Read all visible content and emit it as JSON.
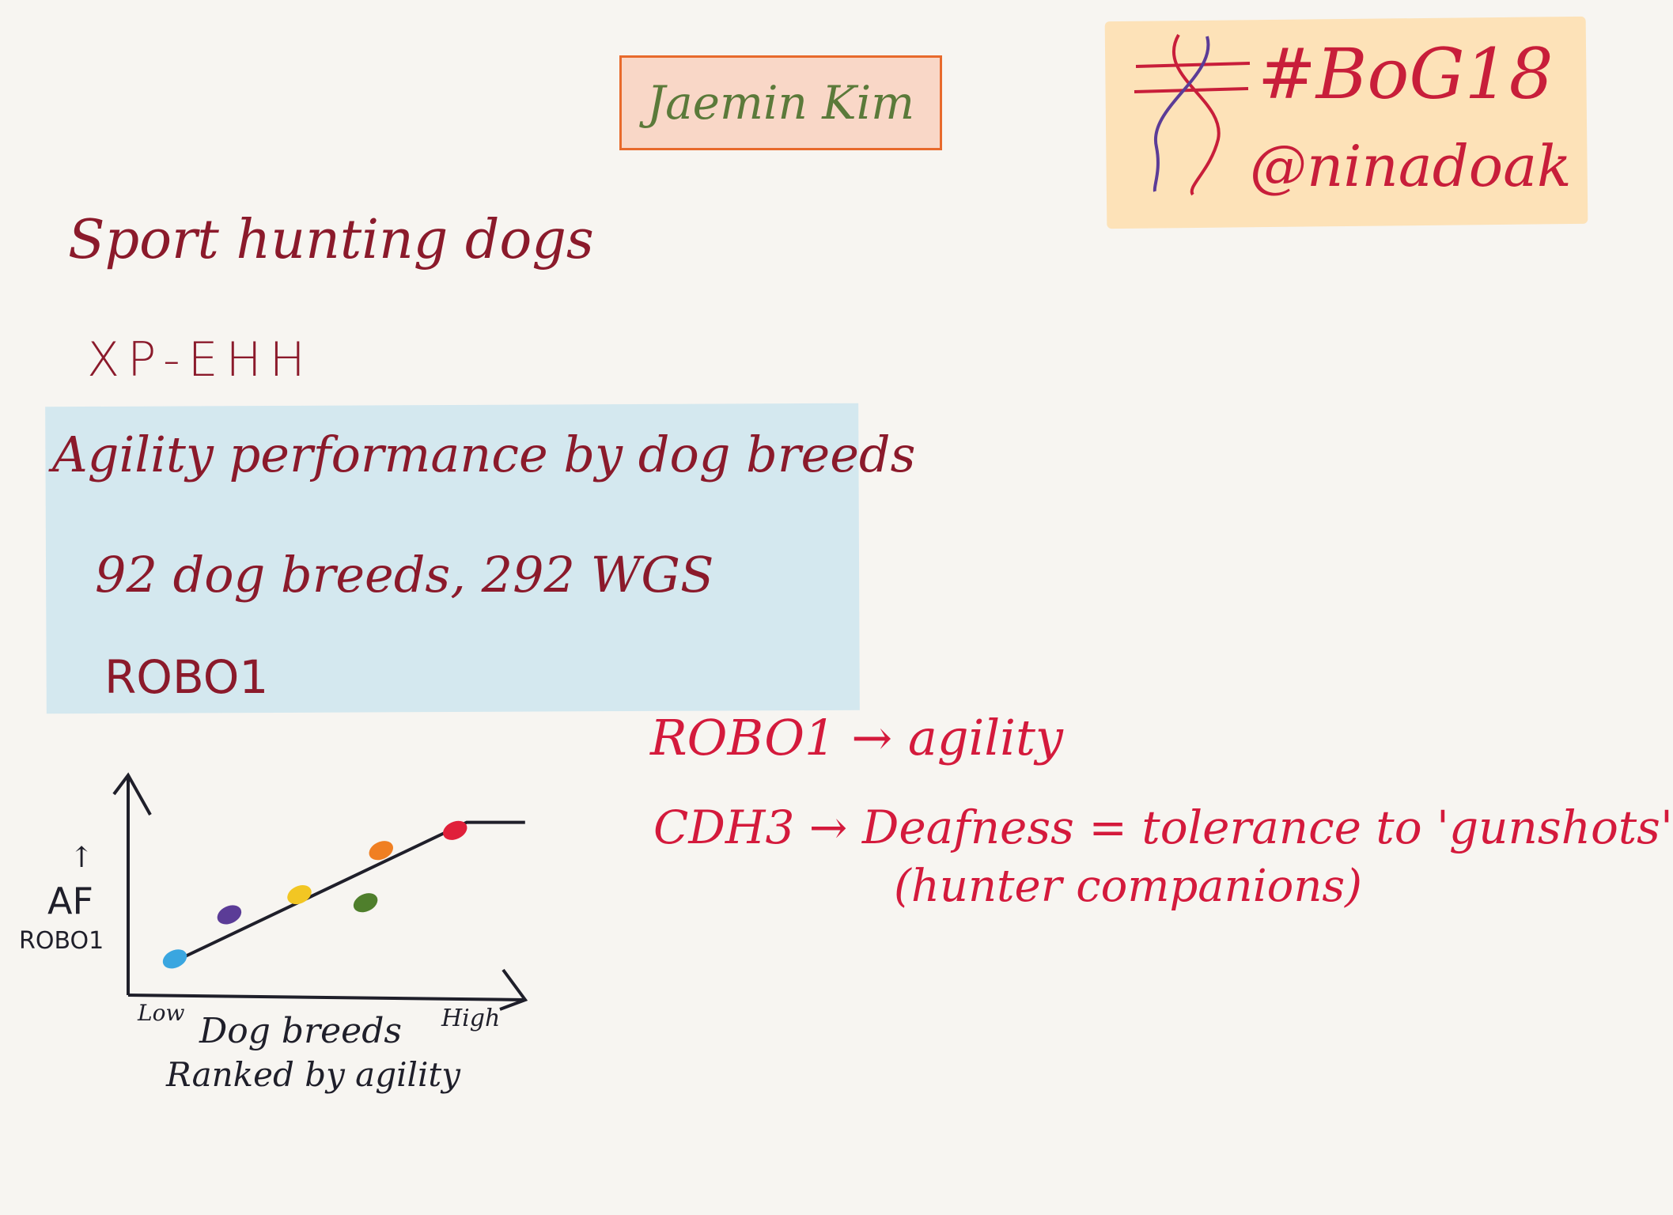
{
  "title": "Jaemin Kim",
  "hashtag": "#BoG18",
  "handle": "@ninadoak",
  "notes": {
    "sport": "Sport hunting dogs",
    "xpehh": "XP-EHH",
    "agility_title": "Agility performance by dog breeds",
    "breeds_wgs": "92 dog breeds, 292 WGS",
    "robo1": "ROBO1",
    "robo_agility": "ROBO1 → agility",
    "cdh3": "CDH3 → Deafness = tolerance to 'gunshots'",
    "hunter": "(hunter companions)"
  },
  "colors": {
    "maroon_ink": "#8b1a2b",
    "red_ink": "#d41a3c",
    "title_green": "#5b7a3a",
    "title_box_fill": "#f9d7c7",
    "title_box_border": "#e86a2c",
    "tag_box_fill": "#fde2b8",
    "blue_box_fill": "#d4e8ef"
  },
  "chart_data": {
    "type": "scatter",
    "title": "",
    "xlabel": "Dog breeds Ranked by agility",
    "ylabel": "↑ AF ROBO1",
    "x_tick_labels": [
      "Low",
      "High"
    ],
    "xlim": [
      0,
      10
    ],
    "ylim": [
      0,
      10
    ],
    "grid": false,
    "points": [
      {
        "x": 1.2,
        "y": 1.8,
        "color": "#3aa6e0"
      },
      {
        "x": 2.6,
        "y": 4.0,
        "color": "#5b3c97"
      },
      {
        "x": 4.4,
        "y": 5.0,
        "color": "#f2c623"
      },
      {
        "x": 6.1,
        "y": 4.6,
        "color": "#4f7f2c"
      },
      {
        "x": 6.5,
        "y": 7.2,
        "color": "#f07f22"
      },
      {
        "x": 8.4,
        "y": 8.2,
        "color": "#e0203a"
      }
    ],
    "trend_line": {
      "from": [
        1.0,
        1.5
      ],
      "to": [
        8.7,
        8.6
      ],
      "plateau_to": [
        10.2,
        8.6
      ]
    }
  }
}
